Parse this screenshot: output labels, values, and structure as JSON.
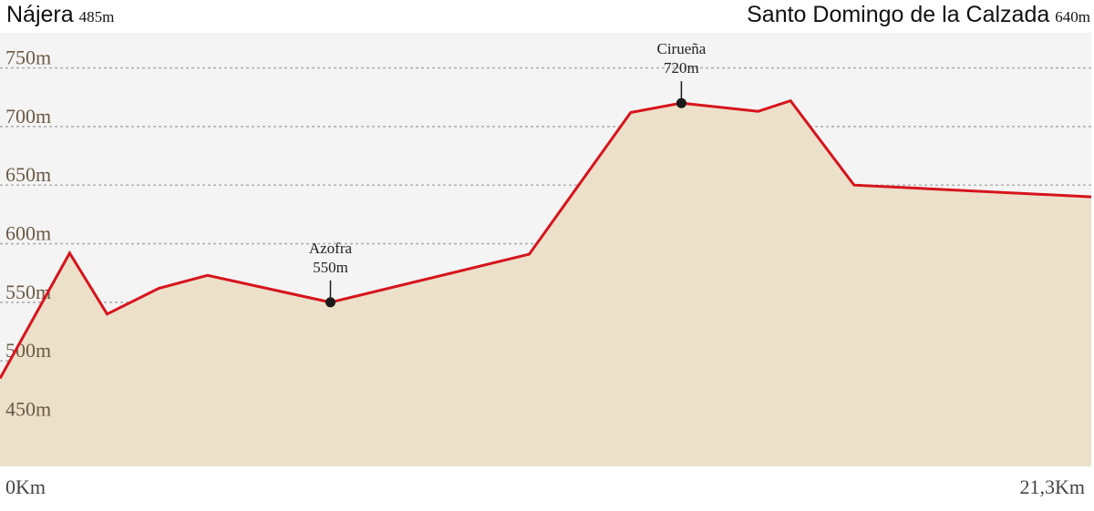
{
  "header": {
    "start_name": "Nájera",
    "start_alt": "485m",
    "end_name": "Santo Domingo de la Calzada",
    "end_alt": "640m"
  },
  "colors": {
    "plot_background": "#f4f4f4",
    "area_fill": "#ece0cb",
    "profile_line": "#d7141c",
    "gridline": "#b0b0b0",
    "tick_label": "#6b5a45",
    "marker": "#1a1a1a"
  },
  "chart_data": {
    "type": "area",
    "title": "",
    "xlabel": "",
    "ylabel": "",
    "x_unit": "km",
    "y_unit": "m",
    "xlim": [
      0,
      21.3
    ],
    "ylim": [
      410,
      780
    ],
    "x_tick_labels": [
      "0Km",
      "21,3Km"
    ],
    "y_ticks": [
      450,
      500,
      550,
      600,
      650,
      700,
      750
    ],
    "y_tick_labels": [
      "450m",
      "500m",
      "550m",
      "600m",
      "650m",
      "700m",
      "750m"
    ],
    "grid": "horizontal dashed",
    "series": [
      {
        "x": [
          0,
          1.36,
          2.09,
          3.1,
          4.05,
          6.45,
          10.33,
          12.31,
          13.3,
          14.8,
          15.43,
          16.67,
          21.3
        ],
        "y": [
          485,
          592,
          540,
          562,
          573,
          550,
          591,
          712,
          720,
          713,
          722,
          650,
          640
        ]
      }
    ],
    "annotations": [
      {
        "name": "Azofra",
        "label": "550m",
        "x": 6.45,
        "y": 550
      },
      {
        "name": "Cirueña",
        "label": "720m",
        "x": 13.3,
        "y": 720
      }
    ]
  }
}
